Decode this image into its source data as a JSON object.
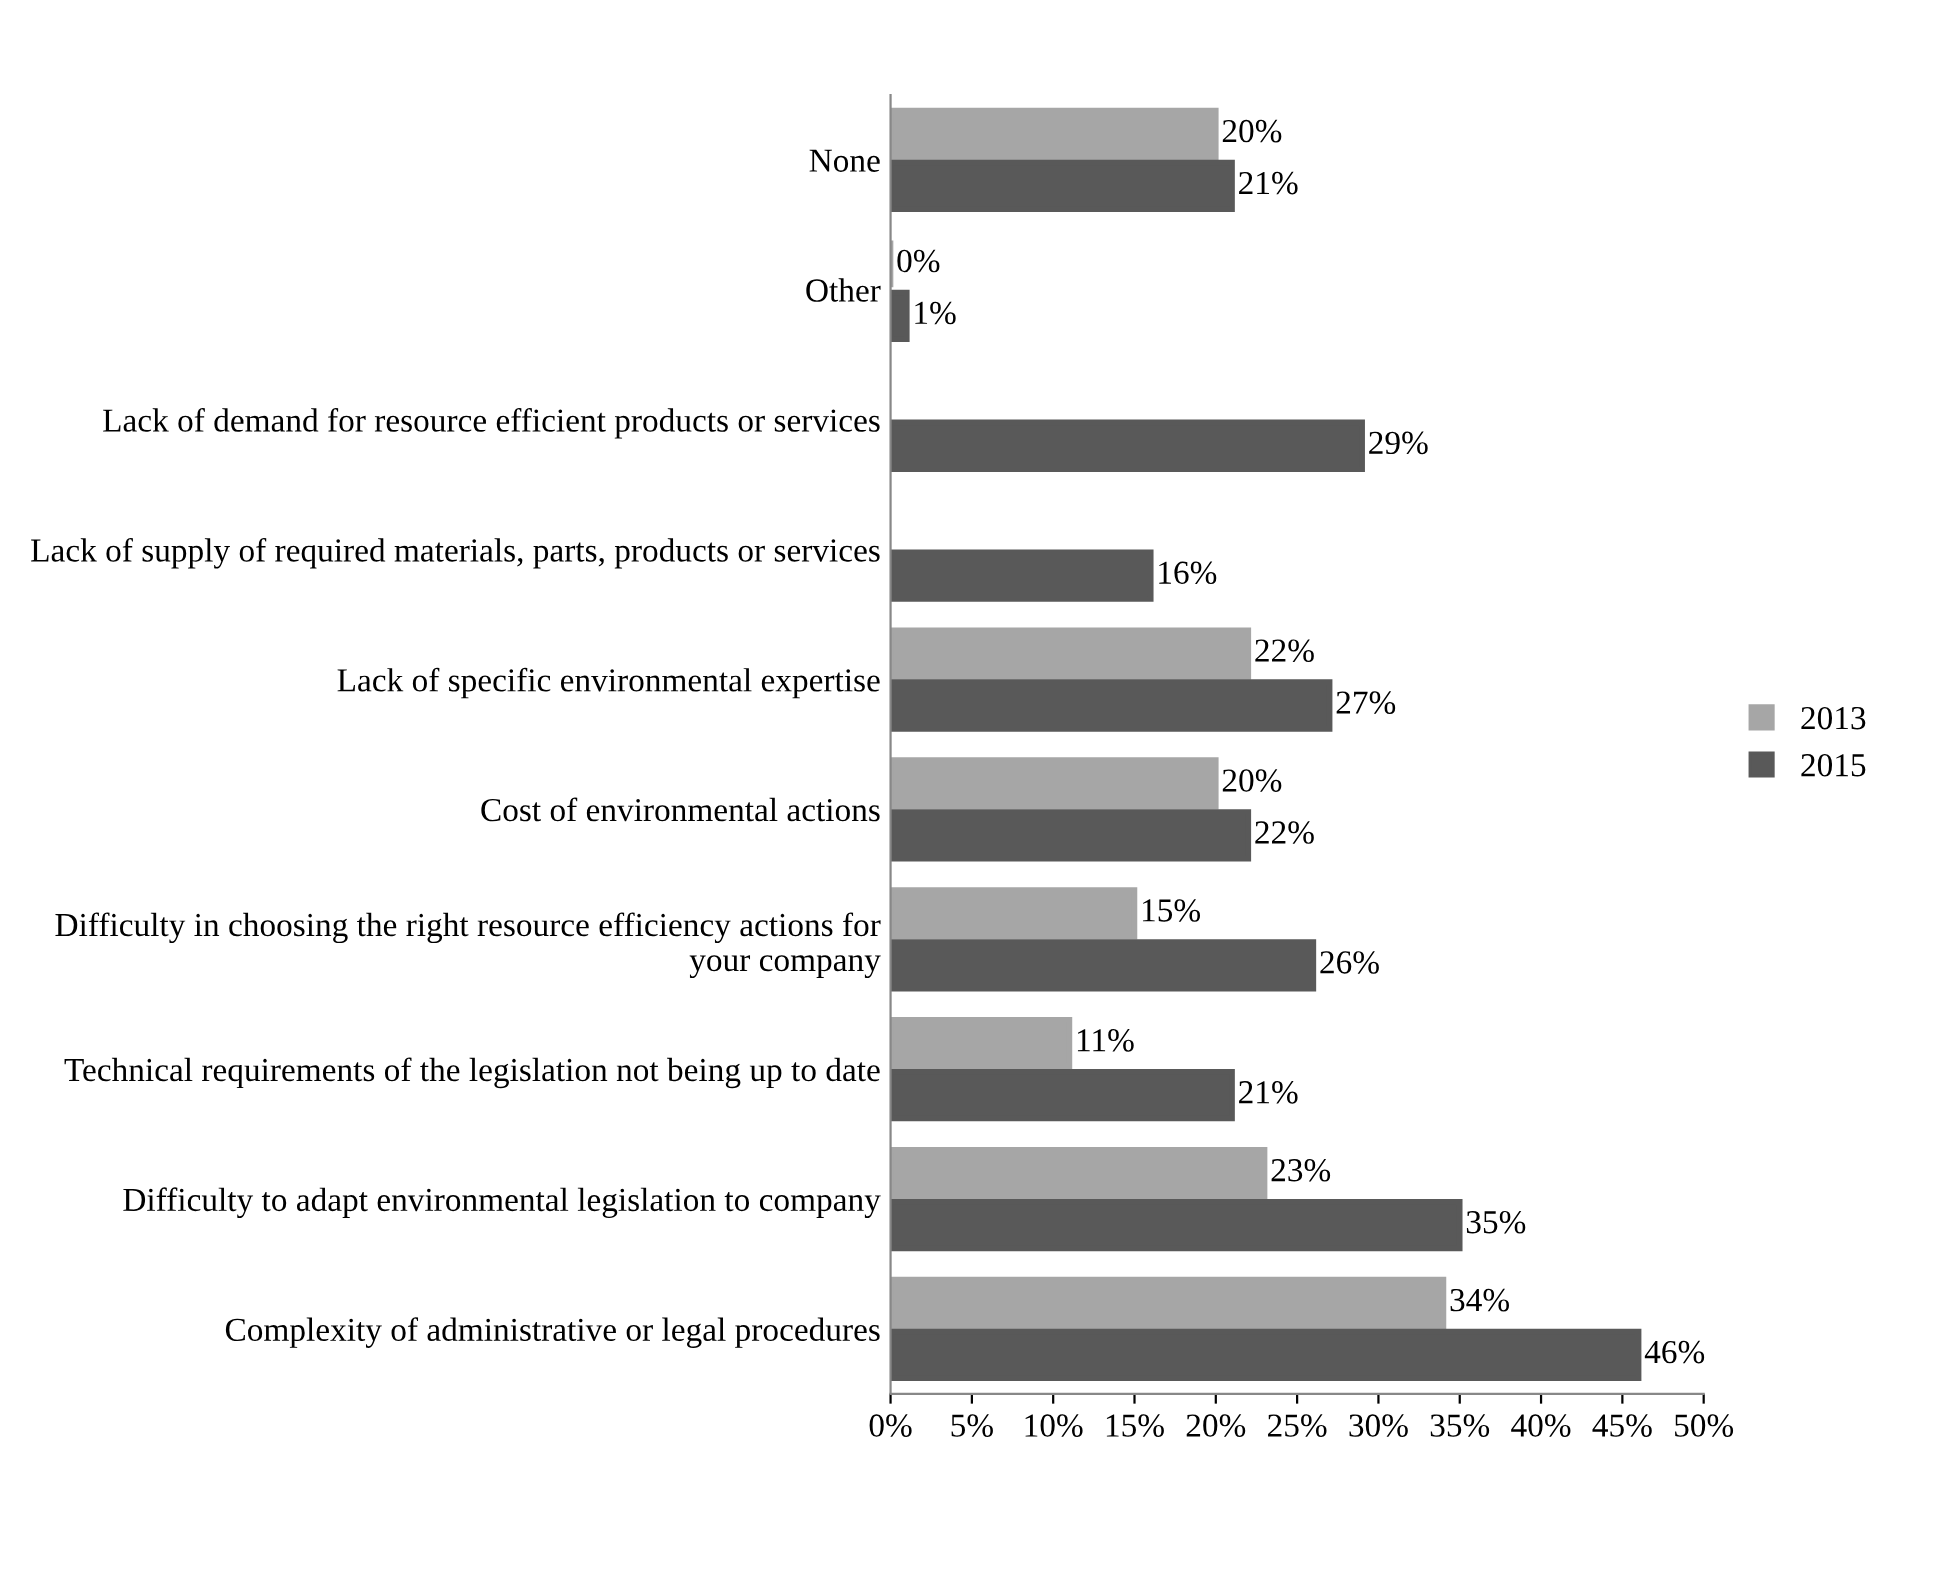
{
  "chart_data": {
    "type": "bar",
    "orientation": "horizontal",
    "categories": [
      "None",
      "Other",
      "Lack of demand for resource efficient products or services",
      "Lack of supply of required materials, parts, products or services",
      "Lack of specific environmental expertise",
      "Cost of environmental actions",
      "Difficulty in choosing the right resource efficiency actions for your company",
      "Technical requirements of the legislation not being up to date",
      "Difficulty to adapt environmental legislation to company",
      "Complexity of administrative or legal procedures"
    ],
    "series": [
      {
        "name": "2013",
        "color": "#a6a6a6",
        "values": [
          20,
          0,
          null,
          null,
          22,
          20,
          15,
          11,
          23,
          34
        ],
        "value_labels": [
          "20%",
          "0%",
          null,
          null,
          "22%",
          "20%",
          "15%",
          "11%",
          "23%",
          "34%"
        ]
      },
      {
        "name": "2015",
        "color": "#595959",
        "values": [
          21,
          1,
          29,
          16,
          27,
          22,
          26,
          21,
          35,
          46
        ],
        "value_labels": [
          "21%",
          "1%",
          "29%",
          "16%",
          "27%",
          "22%",
          "26%",
          "21%",
          "35%",
          "46%"
        ]
      }
    ],
    "xlim": [
      0,
      50
    ],
    "xticks": [
      {
        "value": 0,
        "label": "0%"
      },
      {
        "value": 5,
        "label": "5%"
      },
      {
        "value": 10,
        "label": "10%"
      },
      {
        "value": 15,
        "label": "15%"
      },
      {
        "value": 20,
        "label": "20%"
      },
      {
        "value": 25,
        "label": "25%"
      },
      {
        "value": 30,
        "label": "30%"
      },
      {
        "value": 35,
        "label": "35%"
      },
      {
        "value": 40,
        "label": "40%"
      },
      {
        "value": 45,
        "label": "45%"
      },
      {
        "value": 50,
        "label": "50%"
      }
    ],
    "legend": "right",
    "grid": false
  }
}
